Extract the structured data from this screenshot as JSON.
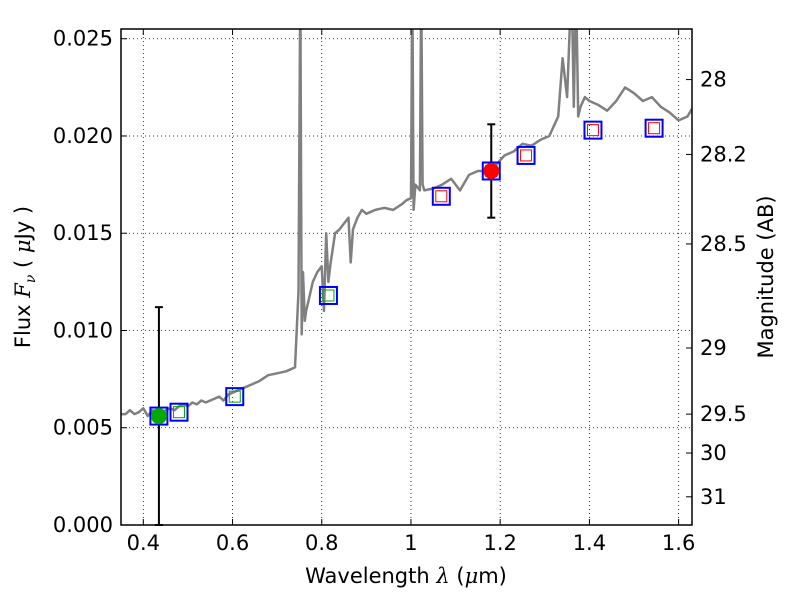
{
  "chart_data": {
    "type": "scatter",
    "title": "",
    "xlabel": {
      "prefix": "Wavelength",
      "symbol": "λ",
      "unit_open": " (",
      "unit_mu": "μ",
      "unit_rest": "m)"
    },
    "ylabel": {
      "prefix": "Flux",
      "symbol": "F",
      "sub": "ν",
      "unit_open": "( ",
      "unit_mu": "μ",
      "unit_rest": "Jy )"
    },
    "y2label": "Magnitude (AB)",
    "xlim": [
      0.35,
      1.63
    ],
    "ylim": [
      0.0,
      0.0255
    ],
    "x_ticks": [
      0.4,
      0.6,
      0.8,
      1.0,
      1.2,
      1.4,
      1.6
    ],
    "x_tick_labels": [
      "0.4",
      "0.6",
      "0.8",
      "1",
      "1.2",
      "1.4",
      "1.6"
    ],
    "y_ticks": [
      0.0,
      0.005,
      0.01,
      0.015,
      0.02,
      0.025
    ],
    "y_tick_labels": [
      "0.000",
      "0.005",
      "0.010",
      "0.015",
      "0.020",
      "0.025"
    ],
    "y2_ticks": [
      {
        "label": "28",
        "flux": 0.0229
      },
      {
        "label": "28.2",
        "flux": 0.01905
      },
      {
        "label": "28.5",
        "flux": 0.01445
      },
      {
        "label": "29",
        "flux": 0.0091
      },
      {
        "label": "29.5",
        "flux": 0.0057
      },
      {
        "label": "30",
        "flux": 0.0037
      },
      {
        "label": "31",
        "flux": 0.00145
      }
    ],
    "grid": true,
    "series": [
      {
        "name": "template_spectrum",
        "kind": "line",
        "color": "#808080",
        "x": [
          0.35,
          0.36,
          0.37,
          0.38,
          0.39,
          0.4,
          0.41,
          0.42,
          0.43,
          0.44,
          0.45,
          0.46,
          0.47,
          0.48,
          0.49,
          0.5,
          0.51,
          0.52,
          0.53,
          0.54,
          0.55,
          0.56,
          0.57,
          0.58,
          0.59,
          0.6,
          0.62,
          0.64,
          0.66,
          0.68,
          0.7,
          0.72,
          0.74,
          0.748,
          0.752,
          0.755,
          0.758,
          0.762,
          0.765,
          0.77,
          0.78,
          0.79,
          0.8,
          0.805,
          0.81,
          0.815,
          0.82,
          0.83,
          0.84,
          0.85,
          0.86,
          0.865,
          0.87,
          0.88,
          0.89,
          0.9,
          0.92,
          0.94,
          0.96,
          0.98,
          0.99,
          1.0,
          1.003,
          1.006,
          1.01,
          1.02,
          1.023,
          1.026,
          1.03,
          1.05,
          1.07,
          1.09,
          1.11,
          1.13,
          1.15,
          1.17,
          1.19,
          1.21,
          1.23,
          1.25,
          1.27,
          1.29,
          1.31,
          1.33,
          1.34,
          1.35,
          1.36,
          1.365,
          1.37,
          1.375,
          1.38,
          1.39,
          1.4,
          1.42,
          1.44,
          1.46,
          1.48,
          1.5,
          1.52,
          1.54,
          1.56,
          1.58,
          1.6,
          1.62,
          1.63
        ],
        "y": [
          0.0057,
          0.0057,
          0.0059,
          0.0057,
          0.0058,
          0.006,
          0.0056,
          0.0059,
          0.0058,
          0.0055,
          0.0059,
          0.006,
          0.0059,
          0.0061,
          0.0062,
          0.0061,
          0.0063,
          0.0062,
          0.0064,
          0.0063,
          0.0064,
          0.0065,
          0.0066,
          0.0064,
          0.0067,
          0.0068,
          0.007,
          0.0072,
          0.0074,
          0.0077,
          0.0078,
          0.0079,
          0.0081,
          0.012,
          0.028,
          0.0098,
          0.013,
          0.0105,
          0.011,
          0.0115,
          0.0125,
          0.013,
          0.0133,
          0.011,
          0.015,
          0.0125,
          0.0135,
          0.015,
          0.0152,
          0.0155,
          0.0158,
          0.0135,
          0.0152,
          0.0158,
          0.0162,
          0.016,
          0.0162,
          0.0163,
          0.0162,
          0.0165,
          0.0167,
          0.0168,
          0.028,
          0.0162,
          0.0175,
          0.0172,
          0.028,
          0.0175,
          0.0172,
          0.0173,
          0.0175,
          0.0178,
          0.0172,
          0.018,
          0.0182,
          0.0182,
          0.0185,
          0.019,
          0.0192,
          0.0196,
          0.0195,
          0.0198,
          0.02,
          0.021,
          0.024,
          0.022,
          0.028,
          0.0215,
          0.028,
          0.021,
          0.0215,
          0.022,
          0.0218,
          0.0216,
          0.0213,
          0.0218,
          0.0225,
          0.0222,
          0.0218,
          0.022,
          0.0215,
          0.0212,
          0.0208,
          0.021,
          0.0214
        ],
        "clip": "plot_area"
      },
      {
        "name": "model_photometry",
        "kind": "open_square",
        "edge_color": "#0000ff",
        "points": [
          {
            "x": 0.435,
            "y": 0.0056,
            "inner_color": "#00aa00"
          },
          {
            "x": 0.48,
            "y": 0.0058,
            "inner_color": "#00aa00"
          },
          {
            "x": 0.605,
            "y": 0.0066,
            "inner_color": "#00aa00"
          },
          {
            "x": 0.815,
            "y": 0.0118,
            "inner_color": "#00aa00"
          },
          {
            "x": 1.068,
            "y": 0.0169,
            "inner_color": "#ff0000"
          },
          {
            "x": 1.18,
            "y": 0.0182,
            "inner_color": "#ff0000"
          },
          {
            "x": 1.258,
            "y": 0.019,
            "inner_color": "#ff0000"
          },
          {
            "x": 1.408,
            "y": 0.0203,
            "inner_color": "#ff0000"
          },
          {
            "x": 1.545,
            "y": 0.0204,
            "inner_color": "#ff0000"
          }
        ]
      },
      {
        "name": "observed_photometry",
        "kind": "filled_circle_with_errorbar",
        "points": [
          {
            "x": 0.435,
            "y": 0.0056,
            "err_low": 0.0,
            "err_high": 0.0112,
            "color": "#00aa00"
          },
          {
            "x": 1.18,
            "y": 0.0182,
            "err_low": 0.0158,
            "err_high": 0.0206,
            "color": "#ff0000"
          }
        ]
      }
    ]
  }
}
